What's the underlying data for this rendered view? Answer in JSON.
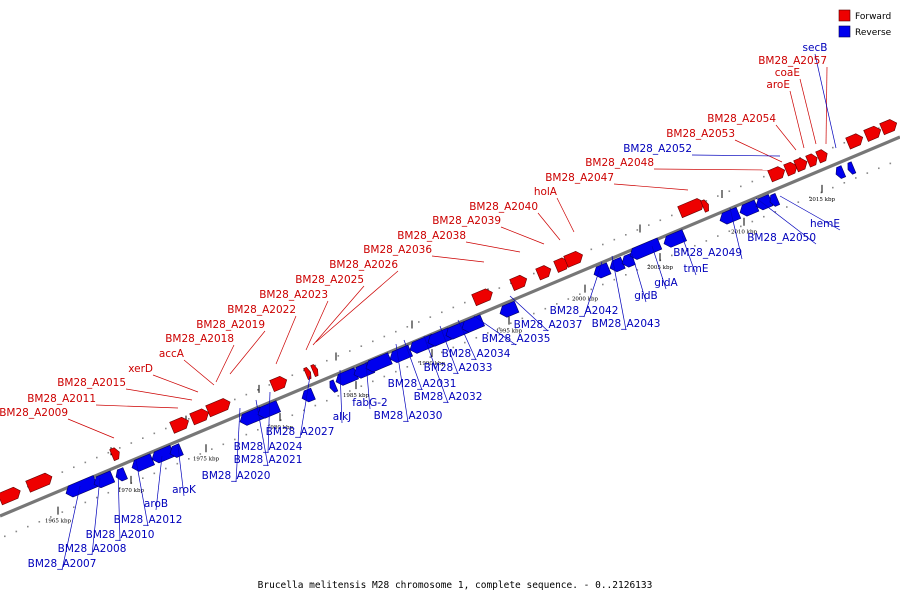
{
  "caption": "Brucella melitensis M28 chromosome 1, complete sequence. - 0..2126133",
  "legend": [
    {
      "label": "Forward",
      "color": "#ee0000"
    },
    {
      "label": "Reverse",
      "color": "#0000ee"
    }
  ],
  "colors": {
    "forward": "#ee0000",
    "reverse": "#0000ee",
    "axis": "#777777"
  },
  "ticks": [
    "1965 kbp",
    "1970 kbp",
    "1975 kbp",
    "1980 kbp",
    "1985 kbp",
    "1990 kbp",
    "1995 kbp",
    "2000 kbp",
    "2005 kbp",
    "2010 kbp",
    "2015 kbp"
  ],
  "forward_genes": [
    {
      "label": "BM28_A2009"
    },
    {
      "label": "BM28_A2011"
    },
    {
      "label": "BM28_A2015"
    },
    {
      "label": "xerD"
    },
    {
      "label": "accA"
    },
    {
      "label": "BM28_A2018"
    },
    {
      "label": "BM28_A2019"
    },
    {
      "label": "BM28_A2022"
    },
    {
      "label": "BM28_A2023"
    },
    {
      "label": "BM28_A2025"
    },
    {
      "label": "BM28_A2026"
    },
    {
      "label": "BM28_A2036"
    },
    {
      "label": "BM28_A2038"
    },
    {
      "label": "BM28_A2039"
    },
    {
      "label": "BM28_A2040"
    },
    {
      "label": "holA"
    },
    {
      "label": "BM28_A2047"
    },
    {
      "label": "BM28_A2048"
    },
    {
      "label": "BM28_A2053"
    },
    {
      "label": "BM28_A2054"
    },
    {
      "label": "aroE"
    },
    {
      "label": "coaE"
    },
    {
      "label": "BM28_A2057"
    }
  ],
  "reverse_genes": [
    {
      "label": "BM28_A2052"
    },
    {
      "label": "secB"
    },
    {
      "label": "hemE"
    },
    {
      "label": "BM28_A2050"
    },
    {
      "label": "BM28_A2049"
    },
    {
      "label": "trmE"
    },
    {
      "label": "gidA"
    },
    {
      "label": "gidB"
    },
    {
      "label": "BM28_A2043"
    },
    {
      "label": "BM28_A2042"
    },
    {
      "label": "BM28_A2037"
    },
    {
      "label": "BM28_A2035"
    },
    {
      "label": "BM28_A2034"
    },
    {
      "label": "BM28_A2033"
    },
    {
      "label": "BM28_A2031"
    },
    {
      "label": "BM28_A2032"
    },
    {
      "label": "BM28_A2030"
    },
    {
      "label": "fabG-2"
    },
    {
      "label": "alkJ"
    },
    {
      "label": "BM28_A2027"
    },
    {
      "label": "BM28_A2024"
    },
    {
      "label": "BM28_A2021"
    },
    {
      "label": "BM28_A2020"
    },
    {
      "label": "aroK"
    },
    {
      "label": "aroB"
    },
    {
      "label": "BM28_A2012"
    },
    {
      "label": "BM28_A2010"
    },
    {
      "label": "BM28_A2008"
    },
    {
      "label": "BM28_A2007"
    }
  ]
}
